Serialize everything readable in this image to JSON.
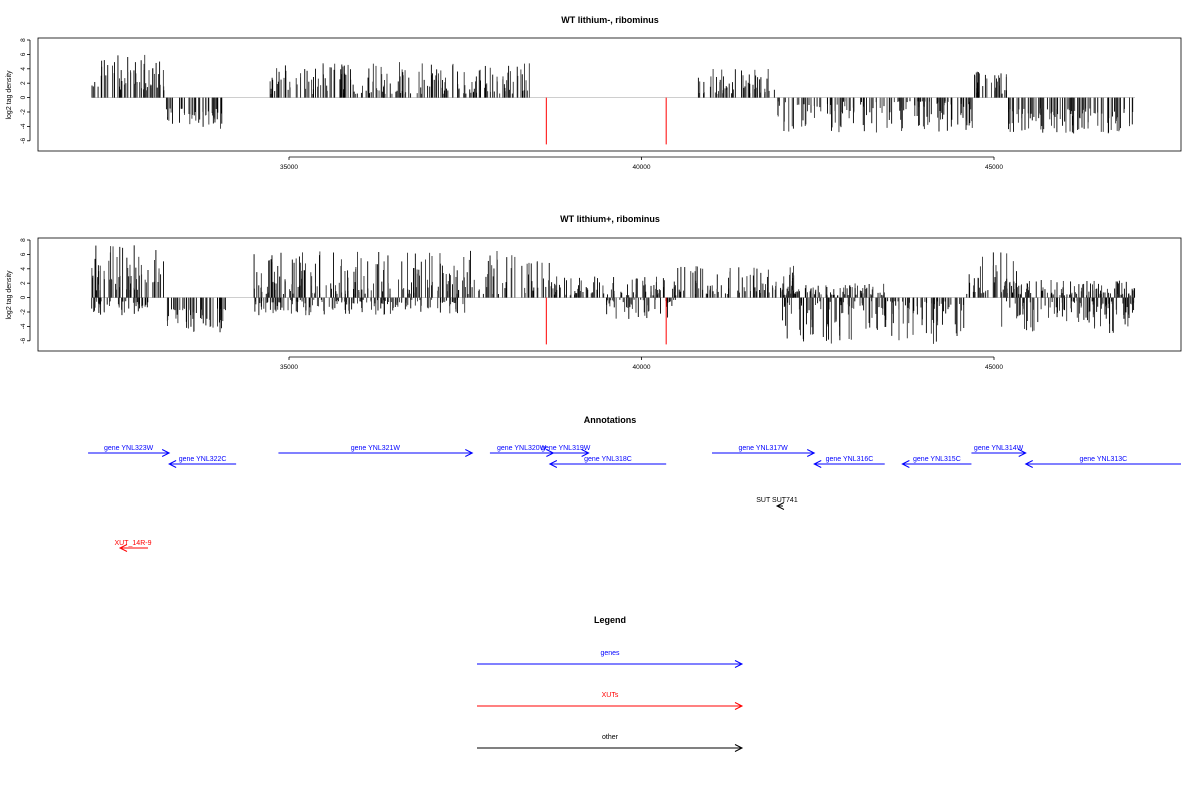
{
  "chart_data": [
    {
      "type": "bar",
      "title": "WT lithium-, ribominus",
      "ylabel": "log2 tag density",
      "xlim": [
        31700,
        47700
      ],
      "ylim": [
        -7,
        8
      ],
      "yticks": [
        8,
        6,
        4,
        2,
        0,
        -2,
        -4,
        -6
      ],
      "xticks": [
        35000,
        40000,
        45000
      ],
      "red_bars": [
        {
          "x": 38650,
          "y": -6.5
        },
        {
          "x": 40350,
          "y": -6.5
        }
      ],
      "segments": [
        {
          "x0": 32200,
          "x1": 33250,
          "min": 1.0,
          "max": 6.0,
          "sign": 1
        },
        {
          "x0": 33250,
          "x1": 34100,
          "min": 1.5,
          "max": 4.5,
          "sign": -1
        },
        {
          "x0": 34700,
          "x1": 38450,
          "min": 0.5,
          "max": 5.0,
          "sign": 1
        },
        {
          "x0": 40800,
          "x1": 41900,
          "min": 0.5,
          "max": 4.0,
          "sign": 1
        },
        {
          "x0": 41900,
          "x1": 44700,
          "min": 0.5,
          "max": 5.0,
          "sign": -1
        },
        {
          "x0": 44700,
          "x1": 45200,
          "min": 0.5,
          "max": 3.7,
          "sign": 1
        },
        {
          "x0": 45200,
          "x1": 47000,
          "min": 1.5,
          "max": 5.0,
          "sign": -1
        }
      ]
    },
    {
      "type": "bar",
      "title": "WT lithium+, ribominus",
      "ylabel": "log2 tag density",
      "xlim": [
        31700,
        47700
      ],
      "ylim": [
        -7,
        8
      ],
      "yticks": [
        8,
        6,
        4,
        2,
        0,
        -2,
        -4,
        -6
      ],
      "xticks": [
        35000,
        40000,
        45000
      ],
      "red_bars": [
        {
          "x": 38650,
          "y": -6.5
        },
        {
          "x": 40350,
          "y": -6.5
        }
      ],
      "segments": [
        {
          "x0": 32200,
          "x1": 33250,
          "min": 1.0,
          "max": 7.5,
          "sign": 1
        },
        {
          "x0": 32200,
          "x1": 33000,
          "min": 0.5,
          "max": 2.5,
          "sign": -1
        },
        {
          "x0": 33250,
          "x1": 34100,
          "min": 1.5,
          "max": 5.0,
          "sign": -1
        },
        {
          "x0": 34500,
          "x1": 38700,
          "min": 0.5,
          "max": 6.5,
          "sign": 1
        },
        {
          "x0": 34500,
          "x1": 37500,
          "min": 0.3,
          "max": 2.5,
          "sign": -1
        },
        {
          "x0": 38700,
          "x1": 40500,
          "min": 0.3,
          "max": 3.0,
          "sign": 1
        },
        {
          "x0": 39500,
          "x1": 40500,
          "min": 0.3,
          "max": 3.0,
          "sign": -1
        },
        {
          "x0": 40500,
          "x1": 42200,
          "min": 0.5,
          "max": 4.5,
          "sign": 1
        },
        {
          "x0": 42000,
          "x1": 44600,
          "min": 0.5,
          "max": 6.5,
          "sign": -1
        },
        {
          "x0": 42000,
          "x1": 43500,
          "min": 0.3,
          "max": 2.0,
          "sign": 1
        },
        {
          "x0": 44600,
          "x1": 45400,
          "min": 0.5,
          "max": 6.5,
          "sign": 1
        },
        {
          "x0": 45100,
          "x1": 47000,
          "min": 0.5,
          "max": 5.0,
          "sign": -1
        },
        {
          "x0": 45100,
          "x1": 47000,
          "min": 0.3,
          "max": 2.5,
          "sign": 1
        }
      ]
    }
  ],
  "annotations": {
    "title": "Annotations",
    "genes": [
      {
        "label": "gene YNL323W",
        "row": 1,
        "dir": "right",
        "start": 32150,
        "end": 33300
      },
      {
        "label": "gene YNL322C",
        "row": 2,
        "dir": "left",
        "start": 33300,
        "end": 34250
      },
      {
        "label": "gene YNL321W",
        "row": 1,
        "dir": "right",
        "start": 34850,
        "end": 37600
      },
      {
        "label": "gene YNL320W",
        "row": 1,
        "dir": "right",
        "start": 37850,
        "end": 38750
      },
      {
        "label": "gene YNL319W",
        "row": 1,
        "dir": "right",
        "start": 38600,
        "end": 39250
      },
      {
        "label": "gene YNL318C",
        "row": 2,
        "dir": "left",
        "start": 38700,
        "end": 40350
      },
      {
        "label": "gene YNL317W",
        "row": 1,
        "dir": "right",
        "start": 41000,
        "end": 42450
      },
      {
        "label": "gene YNL316C",
        "row": 2,
        "dir": "left",
        "start": 42450,
        "end": 43450
      },
      {
        "label": "gene YNL315C",
        "row": 2,
        "dir": "left",
        "start": 43700,
        "end": 44680
      },
      {
        "label": "gene YNL314W",
        "row": 1,
        "dir": "right",
        "start": 44680,
        "end": 45450
      },
      {
        "label": "gene YNL313C",
        "row": 2,
        "dir": "left",
        "start": 45450,
        "end": 47700
      }
    ],
    "sut": {
      "label": "SUT SUT741",
      "x": 41950
    },
    "xut": {
      "label": "XUT_14R-9",
      "x": 33000
    }
  },
  "legend": {
    "title": "Legend",
    "items": [
      {
        "label": "genes",
        "color": "#0000ff"
      },
      {
        "label": "XUTs",
        "color": "#ff0000"
      },
      {
        "label": "other",
        "color": "#000000"
      }
    ]
  },
  "colors": {
    "gene": "#0000ff",
    "xut": "#ff0000",
    "other": "#000000",
    "bar": "#000000",
    "red_bar": "#ff0000",
    "baseline": "#bdbdbd"
  }
}
